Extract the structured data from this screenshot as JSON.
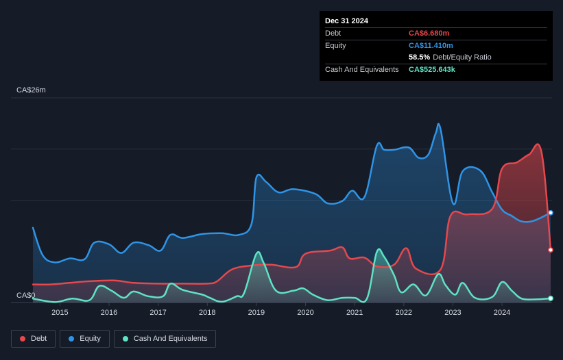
{
  "tooltip": {
    "date": "Dec 31 2024",
    "debt_label": "Debt",
    "debt_value": "CA$6.680m",
    "equity_label": "Equity",
    "equity_value": "CA$11.410m",
    "ratio_value": "58.5%",
    "ratio_label": "Debt/Equity Ratio",
    "cash_label": "Cash And Equivalents",
    "cash_value": "CA$525.643k"
  },
  "legend": [
    {
      "label": "Debt",
      "color": "#e5484d"
    },
    {
      "label": "Equity",
      "color": "#2f94e6"
    },
    {
      "label": "Cash And Equivalents",
      "color": "#5fe3c4"
    }
  ],
  "colors": {
    "debt": "#e5484d",
    "equity": "#2f94e6",
    "cash": "#5fe3c4",
    "background": "#151b27"
  },
  "chart_data": {
    "type": "area",
    "y_top_label": "CA$26m",
    "y_bottom_label": "CA$0",
    "ylim": [
      0,
      26
    ],
    "xlim": [
      2014.45,
      2024.99
    ],
    "x_ticks": [
      "2015",
      "2016",
      "2017",
      "2018",
      "2019",
      "2020",
      "2021",
      "2022",
      "2023",
      "2024"
    ],
    "grid": true,
    "series": [
      {
        "name": "Debt",
        "points": [
          [
            2014.45,
            2.3
          ],
          [
            2014.8,
            2.3
          ],
          [
            2015.2,
            2.5
          ],
          [
            2015.6,
            2.7
          ],
          [
            2016.1,
            2.8
          ],
          [
            2016.5,
            2.5
          ],
          [
            2017.0,
            2.4
          ],
          [
            2017.5,
            2.4
          ],
          [
            2018.0,
            2.4
          ],
          [
            2018.2,
            2.7
          ],
          [
            2018.5,
            4.2
          ],
          [
            2018.9,
            4.7
          ],
          [
            2019.3,
            4.8
          ],
          [
            2019.8,
            4.5
          ],
          [
            2020.0,
            6.2
          ],
          [
            2020.5,
            6.6
          ],
          [
            2020.75,
            7.0
          ],
          [
            2020.9,
            5.6
          ],
          [
            2021.2,
            5.7
          ],
          [
            2021.45,
            4.6
          ],
          [
            2021.8,
            4.8
          ],
          [
            2022.05,
            6.9
          ],
          [
            2022.25,
            4.3
          ],
          [
            2022.75,
            4.2
          ],
          [
            2022.95,
            11.0
          ],
          [
            2023.3,
            11.2
          ],
          [
            2023.8,
            11.9
          ],
          [
            2024.0,
            17.0
          ],
          [
            2024.3,
            17.8
          ],
          [
            2024.55,
            18.8
          ],
          [
            2024.8,
            19.2
          ],
          [
            2024.99,
            6.68
          ]
        ]
      },
      {
        "name": "Equity",
        "points": [
          [
            2014.45,
            9.5
          ],
          [
            2014.65,
            6.0
          ],
          [
            2014.9,
            5.1
          ],
          [
            2015.2,
            5.6
          ],
          [
            2015.5,
            5.5
          ],
          [
            2015.7,
            7.6
          ],
          [
            2016.0,
            7.4
          ],
          [
            2016.25,
            6.3
          ],
          [
            2016.5,
            7.6
          ],
          [
            2016.8,
            7.3
          ],
          [
            2017.05,
            6.6
          ],
          [
            2017.25,
            8.6
          ],
          [
            2017.5,
            8.2
          ],
          [
            2017.9,
            8.7
          ],
          [
            2018.3,
            8.8
          ],
          [
            2018.65,
            8.6
          ],
          [
            2018.9,
            10.0
          ],
          [
            2019.0,
            15.9
          ],
          [
            2019.2,
            15.3
          ],
          [
            2019.45,
            14.0
          ],
          [
            2019.75,
            14.4
          ],
          [
            2020.2,
            13.8
          ],
          [
            2020.45,
            12.6
          ],
          [
            2020.75,
            12.9
          ],
          [
            2020.95,
            14.2
          ],
          [
            2021.2,
            13.4
          ],
          [
            2021.45,
            19.9
          ],
          [
            2021.6,
            19.4
          ],
          [
            2021.8,
            19.4
          ],
          [
            2022.1,
            19.7
          ],
          [
            2022.3,
            18.4
          ],
          [
            2022.5,
            18.8
          ],
          [
            2022.65,
            21.5
          ],
          [
            2022.75,
            22.0
          ],
          [
            2023.0,
            12.6
          ],
          [
            2023.2,
            16.7
          ],
          [
            2023.55,
            16.8
          ],
          [
            2023.8,
            14.0
          ],
          [
            2024.0,
            11.8
          ],
          [
            2024.2,
            11.0
          ],
          [
            2024.4,
            10.3
          ],
          [
            2024.65,
            10.4
          ],
          [
            2024.99,
            11.41
          ]
        ]
      },
      {
        "name": "Cash And Equivalents",
        "points": [
          [
            2014.45,
            0.5
          ],
          [
            2014.9,
            0.05
          ],
          [
            2015.25,
            0.5
          ],
          [
            2015.6,
            0.3
          ],
          [
            2015.8,
            2.1
          ],
          [
            2016.05,
            1.5
          ],
          [
            2016.3,
            0.6
          ],
          [
            2016.5,
            1.4
          ],
          [
            2016.8,
            0.8
          ],
          [
            2017.1,
            0.8
          ],
          [
            2017.25,
            2.4
          ],
          [
            2017.5,
            1.6
          ],
          [
            2017.9,
            1.0
          ],
          [
            2018.05,
            0.6
          ],
          [
            2018.3,
            0.1
          ],
          [
            2018.6,
            0.8
          ],
          [
            2018.75,
            1.2
          ],
          [
            2019.0,
            6.2
          ],
          [
            2019.15,
            5.0
          ],
          [
            2019.4,
            1.5
          ],
          [
            2019.75,
            1.5
          ],
          [
            2019.95,
            1.8
          ],
          [
            2020.15,
            1.0
          ],
          [
            2020.45,
            0.3
          ],
          [
            2020.75,
            0.6
          ],
          [
            2021.0,
            0.6
          ],
          [
            2021.25,
            0.5
          ],
          [
            2021.45,
            6.4
          ],
          [
            2021.6,
            5.8
          ],
          [
            2021.8,
            3.5
          ],
          [
            2021.95,
            1.3
          ],
          [
            2022.2,
            2.3
          ],
          [
            2022.45,
            0.9
          ],
          [
            2022.7,
            3.6
          ],
          [
            2022.85,
            2.2
          ],
          [
            2023.05,
            1.0
          ],
          [
            2023.2,
            2.5
          ],
          [
            2023.45,
            0.6
          ],
          [
            2023.8,
            0.7
          ],
          [
            2024.0,
            2.6
          ],
          [
            2024.2,
            1.5
          ],
          [
            2024.4,
            0.5
          ],
          [
            2024.7,
            0.4
          ],
          [
            2024.99,
            0.526
          ]
        ]
      }
    ]
  }
}
